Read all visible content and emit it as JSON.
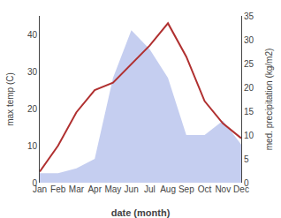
{
  "chart_data": {
    "type": "line",
    "categories": [
      "Jan",
      "Feb",
      "Mar",
      "Apr",
      "May",
      "Jun",
      "Jul",
      "Aug",
      "Sep",
      "Oct",
      "Nov",
      "Dec"
    ],
    "series": [
      {
        "type": "area",
        "axis": "y2",
        "color": "#c5cef0",
        "values": [
          2,
          2,
          3,
          5,
          22,
          32,
          28,
          22,
          10,
          10,
          13,
          8
        ]
      },
      {
        "type": "line",
        "axis": "y",
        "color": "#b03030",
        "values": [
          3,
          10,
          19,
          25,
          27,
          32,
          37,
          43,
          34,
          22,
          16,
          12
        ]
      }
    ],
    "xlabel": "date (month)",
    "ylabel": "max temp (C)",
    "y2label": "med. precipitation (kg/m2)",
    "ylim": [
      0,
      45
    ],
    "yticks": [
      0,
      10,
      20,
      30,
      40
    ],
    "y2lim": [
      0,
      35
    ],
    "y2ticks": [
      0,
      5,
      10,
      15,
      20,
      25,
      30,
      35
    ],
    "grid": false
  }
}
